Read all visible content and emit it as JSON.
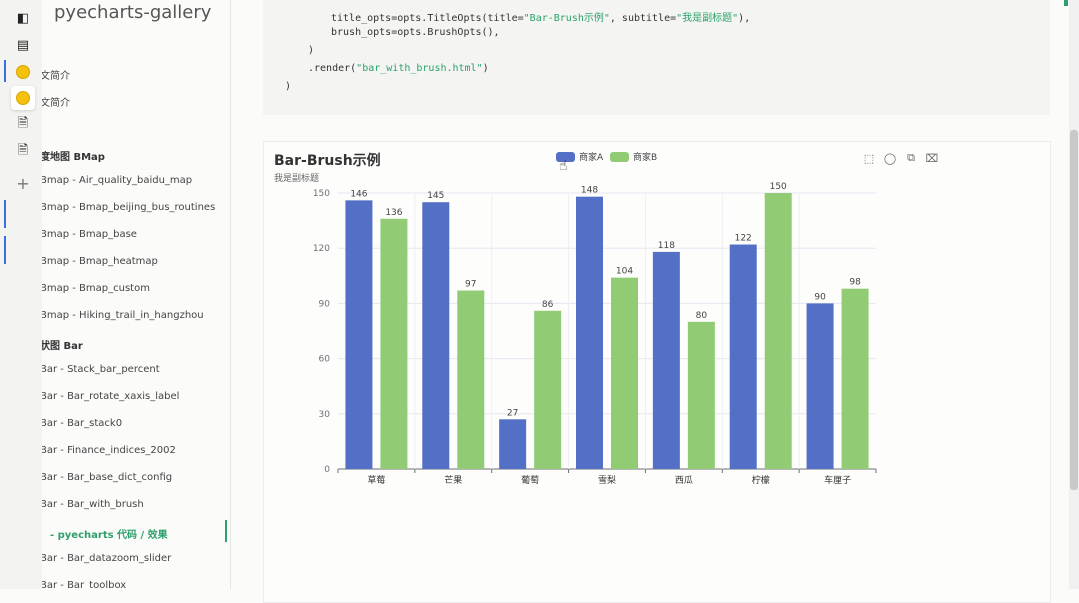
{
  "sidebar": {
    "brand": "pyecharts-gallery",
    "items": [
      {
        "label": "文简介",
        "kind": "item"
      },
      {
        "label": "文简介",
        "kind": "item"
      },
      {
        "label": "度地图 BMap",
        "kind": "section"
      },
      {
        "label": "Bmap - Air_quality_baidu_map",
        "kind": "item"
      },
      {
        "label": "Bmap - Bmap_beijing_bus_routines",
        "kind": "item"
      },
      {
        "label": "Bmap - Bmap_base",
        "kind": "item"
      },
      {
        "label": "Bmap - Bmap_heatmap",
        "kind": "item"
      },
      {
        "label": "Bmap - Bmap_custom",
        "kind": "item"
      },
      {
        "label": "Bmap - Hiking_trail_in_hangzhou",
        "kind": "item"
      },
      {
        "label": "状图 Bar",
        "kind": "section"
      },
      {
        "label": "Bar - Stack_bar_percent",
        "kind": "item"
      },
      {
        "label": "Bar - Bar_rotate_xaxis_label",
        "kind": "item"
      },
      {
        "label": "Bar - Bar_stack0",
        "kind": "item"
      },
      {
        "label": "Bar - Finance_indices_2002",
        "kind": "item"
      },
      {
        "label": "Bar - Bar_base_dict_config",
        "kind": "item"
      },
      {
        "label": "Bar - Bar_with_brush",
        "kind": "item"
      },
      {
        "label": "- pyecharts 代码 / 效果",
        "kind": "active"
      },
      {
        "label": "Bar - Bar_datazoom_slider",
        "kind": "item"
      },
      {
        "label": "Bar - Bar_toolbox",
        "kind": "item"
      }
    ]
  },
  "code": {
    "line1_a": "title_opts=opts.TitleOpts(title=",
    "line1_s1": "\"Bar-Brush示例\"",
    "line1_b": ", subtitle=",
    "line1_s2": "\"我是副标题\"",
    "line1_c": "),",
    "line2": "brush_opts=opts.BrushOpts(),",
    "line3": ")",
    "line4_a": ".render(",
    "line4_s": "\"bar_with_brush.html\"",
    "line4_b": ")",
    "line5": ")"
  },
  "chart_data": {
    "type": "bar",
    "title": "Bar-Brush示例",
    "subtitle": "我是副标题",
    "categories": [
      "草莓",
      "芒果",
      "葡萄",
      "雪梨",
      "西瓜",
      "柠檬",
      "车厘子"
    ],
    "series": [
      {
        "name": "商家A",
        "values": [
          146,
          145,
          27,
          148,
          118,
          122,
          90
        ],
        "color": "#5470c6"
      },
      {
        "name": "商家B",
        "values": [
          136,
          97,
          86,
          104,
          80,
          150,
          98
        ],
        "color": "#91cc75"
      }
    ],
    "ylim": [
      0,
      150
    ],
    "yticks": [
      0,
      30,
      60,
      90,
      120,
      150
    ],
    "legend_position": "top-center",
    "grid": true,
    "data_labels": true
  },
  "toolbox": [
    "rect-select-icon",
    "polygon-select-icon",
    "keep-select-icon",
    "clear-select-icon"
  ]
}
